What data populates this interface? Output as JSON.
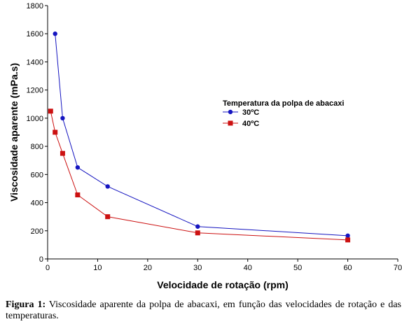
{
  "chart_data": {
    "type": "line",
    "xlabel": "Velocidade de rotação (rpm)",
    "ylabel": "Viscosidade aparente (mPa.s)",
    "xlim": [
      0,
      70
    ],
    "ylim": [
      0,
      1800
    ],
    "x_ticks": [
      0,
      10,
      20,
      30,
      40,
      50,
      60,
      70
    ],
    "y_ticks": [
      0,
      200,
      400,
      600,
      800,
      1000,
      1200,
      1400,
      1600,
      1800
    ],
    "grid": false,
    "legend": {
      "title": "Temperatura da polpa de abacaxi",
      "position": "right"
    },
    "series": [
      {
        "name": "30ºC",
        "color": "#1515c0",
        "marker": "circle",
        "x": [
          1.5,
          3,
          6,
          12,
          30,
          60
        ],
        "y": [
          1600,
          1000,
          650,
          515,
          230,
          165
        ]
      },
      {
        "name": "40ºC",
        "color": "#cc1111",
        "marker": "square",
        "x": [
          0.6,
          1.5,
          3,
          6,
          12,
          30,
          60
        ],
        "y": [
          1050,
          900,
          750,
          455,
          300,
          185,
          135
        ]
      }
    ]
  },
  "caption": {
    "label": "Figura 1:",
    "text": "Viscosidade aparente da polpa de abacaxi, em função das velocidades de rotação e das temperaturas."
  }
}
